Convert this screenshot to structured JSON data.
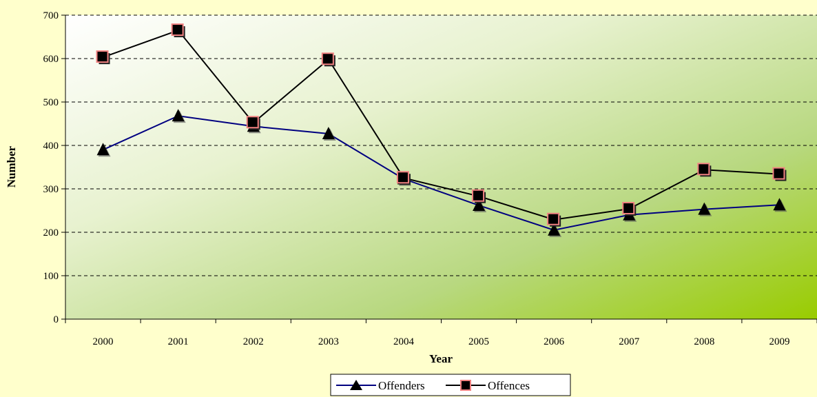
{
  "chart_data": {
    "type": "line",
    "title": "",
    "xlabel": "Year",
    "ylabel": "Number",
    "ylim": [
      0,
      700
    ],
    "yticks": [
      0,
      100,
      200,
      300,
      400,
      500,
      600,
      700
    ],
    "categories": [
      "2000",
      "2001",
      "2002",
      "2003",
      "2004",
      "2005",
      "2006",
      "2007",
      "2008",
      "2009"
    ],
    "grid": true,
    "legend_position": "bottom",
    "series": [
      {
        "name": "Offenders",
        "marker": "triangle",
        "line_color": "#000080",
        "marker_color": "#000000",
        "values": [
          390,
          468,
          444,
          427,
          323,
          262,
          205,
          240,
          253,
          263
        ]
      },
      {
        "name": "Offences",
        "marker": "square",
        "line_color": "#000000",
        "marker_color": "#000000",
        "marker_edge": "#f08080",
        "values": [
          603,
          665,
          452,
          598,
          325,
          283,
          229,
          254,
          344,
          334
        ]
      }
    ],
    "plot_background": [
      "#ffffff",
      "#99cc00"
    ]
  }
}
